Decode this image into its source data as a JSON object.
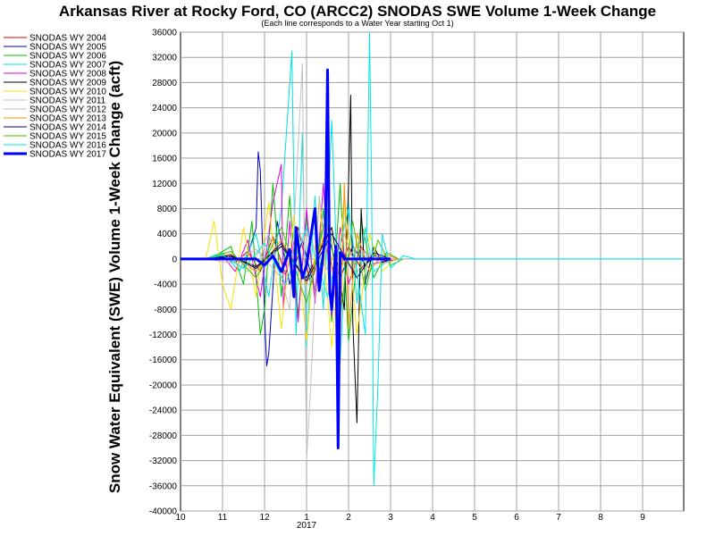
{
  "chart_data": {
    "type": "line",
    "title": "Arkansas River at Rocky Ford, CO (ARCC2) SNODAS SWE Volume 1-Week Change",
    "subtitle": "(Each line corresponds to a Water Year starting Oct 1)",
    "ylabel": "Snow Water Equivalent (SWE) Volume 1-Week Change (acft)",
    "xlabel": "",
    "year_label": "2017",
    "ylim": [
      -40000,
      36000
    ],
    "yticks": [
      "36000",
      "32000",
      "28000",
      "24000",
      "20000",
      "16000",
      "12000",
      "8000",
      "4000",
      "0",
      "-4000",
      "-8000",
      "-12000",
      "-16000",
      "-20000",
      "-24000",
      "-28000",
      "-32000",
      "-36000",
      "-40000"
    ],
    "xlim": [
      10,
      10.5
    ],
    "xticks": [
      "10",
      "11",
      "12",
      "1",
      "2",
      "3",
      "4",
      "5",
      "6",
      "7",
      "8",
      "9"
    ],
    "grid": true,
    "legend_position": "left",
    "series": [
      {
        "name": "SNODAS WY 2004",
        "color": "#e00000",
        "width": 1,
        "x": [
          10.6,
          11.0,
          11.3,
          11.6,
          11.9,
          12.2,
          12.5,
          12.8,
          13.1,
          13.4,
          13.7,
          14.0,
          14.3,
          14.6,
          14.9,
          15.2
        ],
        "y": [
          0,
          200,
          -600,
          1200,
          -2000,
          3500,
          -2500,
          5000,
          -4000,
          3000,
          -3000,
          2000,
          -1500,
          800,
          -400,
          0
        ]
      },
      {
        "name": "SNODAS WY 2005",
        "color": "#0000c0",
        "width": 1,
        "x": [
          10.6,
          11.1,
          11.5,
          11.8,
          11.85,
          11.9,
          12.0,
          12.05,
          12.1,
          12.3,
          12.6,
          12.9,
          13.2,
          13.5,
          13.8,
          14.1,
          14.4,
          14.6,
          15.0
        ],
        "y": [
          0,
          500,
          -1500,
          5000,
          17000,
          14000,
          -9000,
          -17000,
          -15000,
          6000,
          -4000,
          3000,
          -5000,
          4000,
          -3000,
          2000,
          -1000,
          500,
          0
        ]
      },
      {
        "name": "SNODAS WY 2006",
        "color": "#00c000",
        "width": 1,
        "x": [
          10.6,
          10.9,
          11.2,
          11.5,
          11.7,
          11.9,
          12.0,
          12.2,
          12.4,
          12.6,
          12.8,
          13.0,
          13.2,
          13.4,
          13.6,
          13.8,
          14.0,
          14.3,
          14.6,
          14.9,
          15.2
        ],
        "y": [
          0,
          800,
          2000,
          -4000,
          6000,
          -12000,
          -8000,
          12000,
          -6000,
          10000,
          -9000,
          7000,
          -6000,
          8000,
          -10000,
          12000,
          -13000,
          6000,
          -3000,
          1000,
          0
        ]
      },
      {
        "name": "SNODAS WY 2007",
        "color": "#00e0e0",
        "width": 1,
        "x": [
          10.6,
          11.0,
          11.4,
          11.8,
          12.1,
          12.4,
          12.65,
          12.75,
          12.9,
          13.0,
          13.2,
          13.4,
          13.6,
          13.8,
          14.0,
          14.2,
          14.4,
          14.6,
          15.0
        ],
        "y": [
          0,
          1000,
          -2000,
          4000,
          -6000,
          8000,
          33000,
          -12000,
          20000,
          -14000,
          10000,
          -8000,
          22000,
          -16000,
          9000,
          -7000,
          5000,
          -2000,
          0
        ]
      },
      {
        "name": "SNODAS WY 2008",
        "color": "#e000e0",
        "width": 1,
        "x": [
          10.6,
          11.0,
          11.3,
          11.6,
          11.9,
          12.2,
          12.4,
          12.45,
          12.6,
          12.8,
          13.0,
          13.2,
          13.4,
          13.6,
          13.8,
          14.0,
          14.3,
          14.6,
          15.0
        ],
        "y": [
          0,
          600,
          -2000,
          3000,
          -6000,
          9000,
          15000,
          -8000,
          6000,
          -10000,
          8000,
          -7000,
          12000,
          -9000,
          5000,
          -4000,
          2000,
          -800,
          0
        ]
      },
      {
        "name": "SNODAS WY 2009",
        "color": "#000000",
        "width": 1,
        "x": [
          10.6,
          11.2,
          11.8,
          12.4,
          13.0,
          13.6,
          13.9,
          14.0,
          14.05,
          14.1,
          14.2,
          14.3,
          14.4,
          14.6,
          14.8,
          15.0
        ],
        "y": [
          0,
          400,
          -1200,
          2000,
          -3000,
          5000,
          -8000,
          12000,
          26000,
          -10000,
          -26000,
          8000,
          -4000,
          2000,
          -600,
          0
        ]
      },
      {
        "name": "SNODAS WY 2010",
        "color": "#ffe000",
        "width": 1,
        "x": [
          10.6,
          10.8,
          11.0,
          11.2,
          11.5,
          11.8,
          12.1,
          12.4,
          12.7,
          13.0,
          13.3,
          13.6,
          13.9,
          14.2,
          14.5,
          14.8,
          15.1
        ],
        "y": [
          0,
          6000,
          -4000,
          -8000,
          5000,
          -6000,
          9000,
          -11000,
          7000,
          -13000,
          9000,
          -14000,
          10000,
          -12000,
          4000,
          -2000,
          0
        ]
      },
      {
        "name": "SNODAS WY 2011",
        "color": "#c0c0c0",
        "width": 1,
        "x": [
          10.6,
          11.1,
          11.6,
          12.1,
          12.6,
          12.9,
          13.0,
          13.1,
          13.3,
          13.6,
          13.9,
          14.2,
          14.5,
          15.0
        ],
        "y": [
          0,
          500,
          -2000,
          4000,
          -8000,
          31000,
          -32000,
          -20000,
          10000,
          -6000,
          4000,
          -2000,
          800,
          0
        ]
      },
      {
        "name": "SNODAS WY 2012",
        "color": "#d0b0b0",
        "width": 1,
        "x": [
          10.6,
          11.2,
          11.8,
          12.4,
          13.0,
          13.6,
          14.2,
          14.8,
          15.2
        ],
        "y": [
          0,
          -600,
          1500,
          -3000,
          4000,
          -3000,
          2000,
          -800,
          0
        ]
      },
      {
        "name": "SNODAS WY 2013",
        "color": "#ff9000",
        "width": 1,
        "x": [
          10.6,
          11.2,
          11.8,
          12.4,
          13.0,
          13.5,
          13.8,
          13.9,
          14.0,
          14.2,
          14.5,
          14.8,
          15.2
        ],
        "y": [
          0,
          800,
          -2000,
          3000,
          -4000,
          5000,
          -13000,
          12000,
          -11000,
          4000,
          -2000,
          800,
          0
        ]
      },
      {
        "name": "SNODAS WY 2014",
        "color": "#000080",
        "width": 1,
        "x": [
          10.6,
          11.2,
          11.8,
          12.4,
          13.0,
          13.6,
          14.2,
          14.6,
          15.0
        ],
        "y": [
          0,
          600,
          -1500,
          2500,
          -3500,
          4000,
          -3000,
          1000,
          0
        ]
      },
      {
        "name": "SNODAS WY 2015",
        "color": "#40c000",
        "width": 1,
        "x": [
          10.6,
          11.2,
          11.8,
          12.4,
          13.0,
          13.5,
          13.8,
          14.1,
          14.4,
          14.7,
          15.0,
          15.3
        ],
        "y": [
          0,
          1200,
          -3000,
          5000,
          -7000,
          8000,
          -9000,
          6000,
          -5000,
          3000,
          -1000,
          0
        ]
      },
      {
        "name": "SNODAS WY 2016",
        "color": "#00e8e8",
        "width": 1,
        "x": [
          10.6,
          11.0,
          11.5,
          12.0,
          12.5,
          13.0,
          13.5,
          14.0,
          14.4,
          14.5,
          14.55,
          14.6,
          14.7,
          14.8,
          15.0,
          15.3,
          15.6,
          16.0,
          17.0,
          18.0,
          19.0,
          20.0,
          21.0,
          21.9
        ],
        "y": [
          0,
          600,
          -1500,
          2500,
          -4000,
          5000,
          -6000,
          8000,
          -12000,
          36000,
          10000,
          -36000,
          -20000,
          4000,
          -1500,
          500,
          0,
          0,
          0,
          0,
          0,
          0,
          0,
          0
        ]
      },
      {
        "name": "SNODAS WY 2017",
        "color": "#0000ff",
        "width": 3,
        "x": [
          10.0,
          10.5,
          11.0,
          11.5,
          11.8,
          12.0,
          12.2,
          12.4,
          12.6,
          12.7,
          12.75,
          12.9,
          13.0,
          13.2,
          13.3,
          13.45,
          13.5,
          13.55,
          13.6,
          13.7,
          13.75,
          13.8,
          13.9,
          14.0,
          14.3,
          14.6,
          15.0
        ],
        "y": [
          0,
          0,
          0,
          0,
          0,
          -1000,
          500,
          -2000,
          1500,
          -6000,
          5000,
          -3000,
          -1000,
          8000,
          -5000,
          4000,
          30000,
          -5000,
          -8000,
          2000,
          -30000,
          1000,
          0,
          0,
          0,
          0,
          0
        ]
      }
    ]
  }
}
